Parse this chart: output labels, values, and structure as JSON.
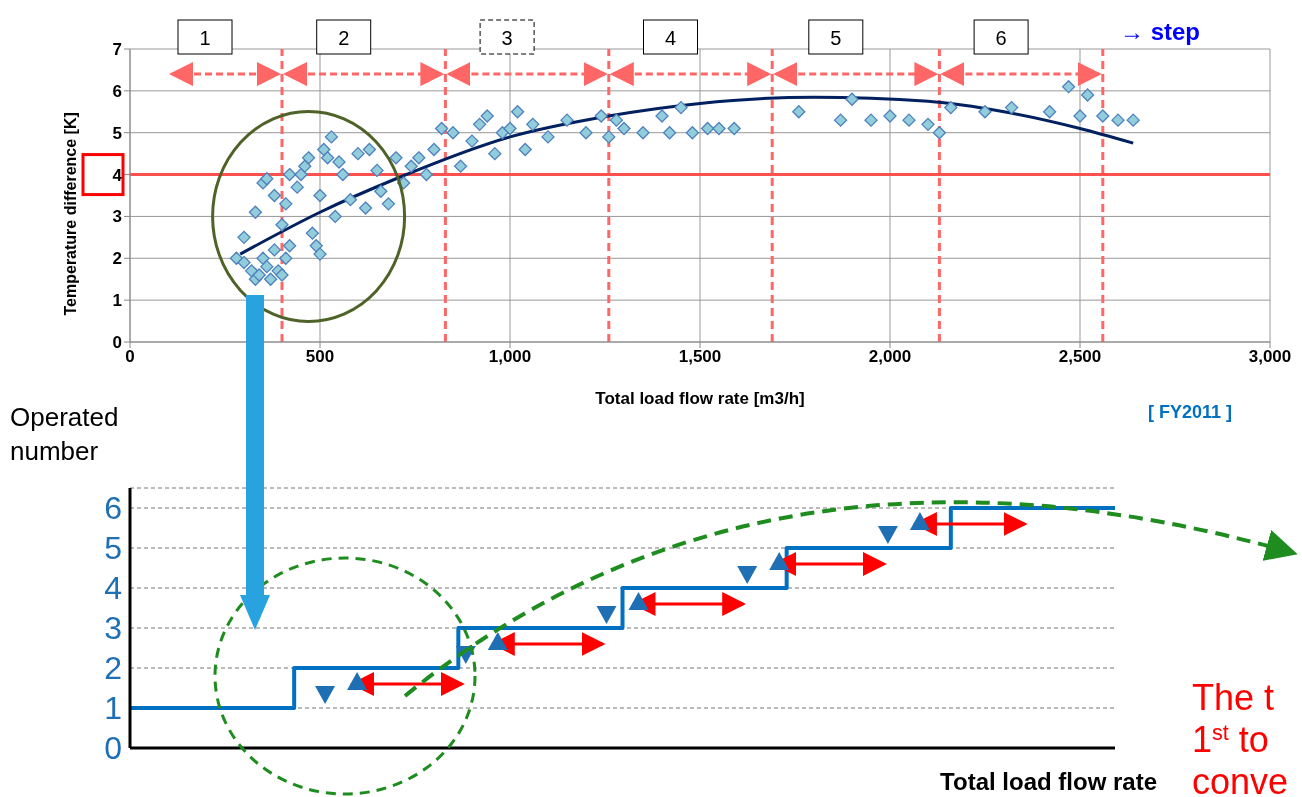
{
  "chart_data": [
    {
      "type": "scatter",
      "xlabel": "Total load flow rate [m3/h]",
      "ylabel": "Temperature difference [K]",
      "xlim": [
        0,
        3000
      ],
      "xticks": [
        0,
        500,
        {
          "value": 1000,
          "label": "1,000"
        },
        {
          "value": 1500,
          "label": "1,500"
        },
        {
          "value": 2000,
          "label": "2,000"
        },
        {
          "value": 2500,
          "label": "2,500"
        },
        {
          "value": 3000,
          "label": "3,000"
        }
      ],
      "ylim": [
        0,
        7
      ],
      "yticks": [
        0,
        1,
        2,
        3,
        4,
        5,
        6,
        7
      ],
      "grid": true,
      "marker": "diamond",
      "series": [
        {
          "type": "scatter",
          "color": "#92cddc",
          "x": [
            280,
            300,
            320,
            330,
            340,
            350,
            360,
            370,
            380,
            390,
            400,
            410,
            420,
            300,
            330,
            350,
            360,
            380,
            400,
            410,
            420,
            440,
            450,
            460,
            470,
            480,
            490,
            500,
            500,
            510,
            520,
            530,
            540,
            550,
            560,
            580,
            600,
            620,
            630,
            650,
            660,
            680,
            700,
            720,
            740,
            760,
            780,
            800,
            820,
            850,
            870,
            900,
            920,
            940,
            960,
            980,
            1000,
            1020,
            1040,
            1060,
            1100,
            1150,
            1200,
            1240,
            1260,
            1280,
            1300,
            1350,
            1400,
            1420,
            1450,
            1480,
            1520,
            1550,
            1590,
            1760,
            1870,
            1900,
            1950,
            2000,
            2050,
            2100,
            2130,
            2160,
            2250,
            2320,
            2420,
            2470,
            2500,
            2520,
            2560,
            2600,
            2640
          ],
          "values": [
            2.0,
            1.9,
            1.7,
            1.5,
            1.6,
            2.0,
            1.8,
            1.5,
            2.2,
            1.7,
            1.6,
            2.0,
            2.3,
            2.5,
            3.1,
            3.8,
            3.9,
            3.5,
            2.8,
            3.3,
            4.0,
            3.7,
            4.0,
            4.2,
            4.4,
            2.6,
            2.3,
            2.1,
            3.5,
            4.6,
            4.4,
            4.9,
            3.0,
            4.3,
            4.0,
            3.4,
            4.5,
            3.2,
            4.6,
            4.1,
            3.6,
            3.3,
            4.4,
            3.8,
            4.2,
            4.4,
            4.0,
            4.6,
            5.1,
            5.0,
            4.2,
            4.8,
            5.2,
            5.4,
            4.5,
            5.0,
            5.1,
            5.5,
            4.6,
            5.2,
            4.9,
            5.3,
            5.0,
            5.4,
            4.9,
            5.3,
            5.1,
            5.0,
            5.4,
            5.0,
            5.6,
            5.0,
            5.1,
            5.1,
            5.1,
            5.5,
            5.3,
            5.8,
            5.3,
            5.4,
            5.3,
            5.2,
            5.0,
            5.6,
            5.5,
            5.6,
            5.5,
            6.1,
            5.4,
            5.9,
            5.4,
            5.3,
            5.3
          ]
        },
        {
          "type": "line",
          "color": "#002060",
          "marker": "none",
          "x": [
            290,
            500,
            700,
            1000,
            1260,
            1500,
            1800,
            2100,
            2300,
            2500,
            2640
          ],
          "values": [
            2.1,
            3.1,
            3.9,
            4.9,
            5.4,
            5.7,
            5.85,
            5.75,
            5.5,
            5.1,
            4.75
          ]
        }
      ],
      "ref_lines": [
        {
          "axis": "y",
          "value": 4,
          "color": "#ff5050",
          "line_style": "solid"
        },
        {
          "axis": "x",
          "value": 400,
          "color": "#ff6666",
          "line_style": "dashed"
        },
        {
          "axis": "x",
          "value": 830,
          "color": "#ff6666",
          "line_style": "dashed"
        },
        {
          "axis": "x",
          "value": 1260,
          "color": "#ff6666",
          "line_style": "dashed"
        },
        {
          "axis": "x",
          "value": 1690,
          "color": "#ff6666",
          "line_style": "dashed"
        },
        {
          "axis": "x",
          "value": 2130,
          "color": "#ff6666",
          "line_style": "dashed"
        },
        {
          "axis": "x",
          "value": 2560,
          "color": "#ff6666",
          "line_style": "dashed"
        }
      ],
      "annotations": [
        "1",
        "2",
        "3",
        "4",
        "5",
        "6",
        "→ step",
        "[ FY2011 ]"
      ]
    },
    {
      "type": "step",
      "xlabel": "Total load flow rate",
      "ylabel": "Operated number",
      "categories": [
        null,
        null,
        null,
        null,
        null,
        null,
        null
      ],
      "ylim": [
        0,
        6.5
      ],
      "yticks": [
        0,
        1,
        2,
        3,
        4,
        5,
        6
      ],
      "grid": "y",
      "tick_labels": "y",
      "series": [
        {
          "color": "#0070c0",
          "values": [
            1,
            2,
            3,
            4,
            5,
            6,
            6
          ]
        }
      ],
      "annotations": [
        "The t",
        "1$^{st}$ to",
        "conve"
      ]
    }
  ]
}
